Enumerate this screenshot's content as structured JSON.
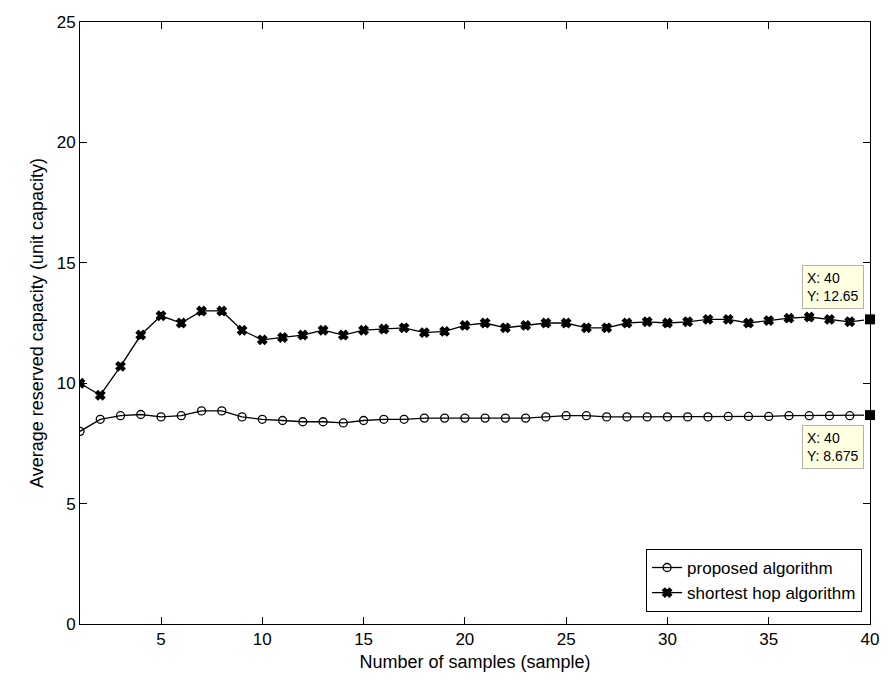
{
  "chart_data": {
    "type": "line",
    "x_label": "Number of samples (sample)",
    "y_label": "Average reserved capacity (unit capacity)",
    "x": [
      1,
      2,
      3,
      4,
      5,
      6,
      7,
      8,
      9,
      10,
      11,
      12,
      13,
      14,
      15,
      16,
      17,
      18,
      19,
      20,
      21,
      22,
      23,
      24,
      25,
      26,
      27,
      28,
      29,
      30,
      31,
      32,
      33,
      34,
      35,
      36,
      37,
      38,
      39,
      40
    ],
    "series": [
      {
        "name": "proposed algorithm",
        "color": "#000000",
        "marker": "circle-open",
        "line_style": "solid",
        "values": [
          8.0,
          8.5,
          8.65,
          8.7,
          8.6,
          8.65,
          8.85,
          8.85,
          8.6,
          8.5,
          8.45,
          8.4,
          8.4,
          8.35,
          8.45,
          8.5,
          8.5,
          8.55,
          8.55,
          8.55,
          8.55,
          8.55,
          8.55,
          8.6,
          8.65,
          8.65,
          8.6,
          8.6,
          8.6,
          8.6,
          8.6,
          8.6,
          8.62,
          8.62,
          8.62,
          8.65,
          8.65,
          8.65,
          8.65,
          8.675
        ]
      },
      {
        "name": "shortest hop algorithm",
        "color": "#000000",
        "marker": "x",
        "line_style": "solid",
        "values": [
          10.0,
          9.5,
          10.7,
          12.0,
          12.8,
          12.5,
          13.0,
          13.0,
          12.2,
          11.8,
          11.9,
          12.0,
          12.2,
          12.0,
          12.2,
          12.25,
          12.3,
          12.1,
          12.15,
          12.4,
          12.5,
          12.3,
          12.4,
          12.5,
          12.5,
          12.3,
          12.3,
          12.5,
          12.55,
          12.5,
          12.55,
          12.65,
          12.65,
          12.5,
          12.6,
          12.7,
          12.75,
          12.65,
          12.55,
          12.65
        ]
      }
    ],
    "xlim": [
      1,
      40
    ],
    "ylim": [
      0,
      25
    ],
    "xticks": [
      5,
      10,
      15,
      20,
      25,
      30,
      35,
      40
    ],
    "yticks": [
      0,
      5,
      10,
      15,
      20,
      25
    ],
    "grid": false,
    "legend": "lower right",
    "annotations": [
      {
        "x": 40,
        "y": 12.65,
        "text": [
          "X: 40",
          "Y: 12.65"
        ],
        "position": "above"
      },
      {
        "x": 40,
        "y": 8.675,
        "text": [
          "X: 40",
          "Y: 8.675"
        ],
        "position": "below"
      }
    ]
  }
}
